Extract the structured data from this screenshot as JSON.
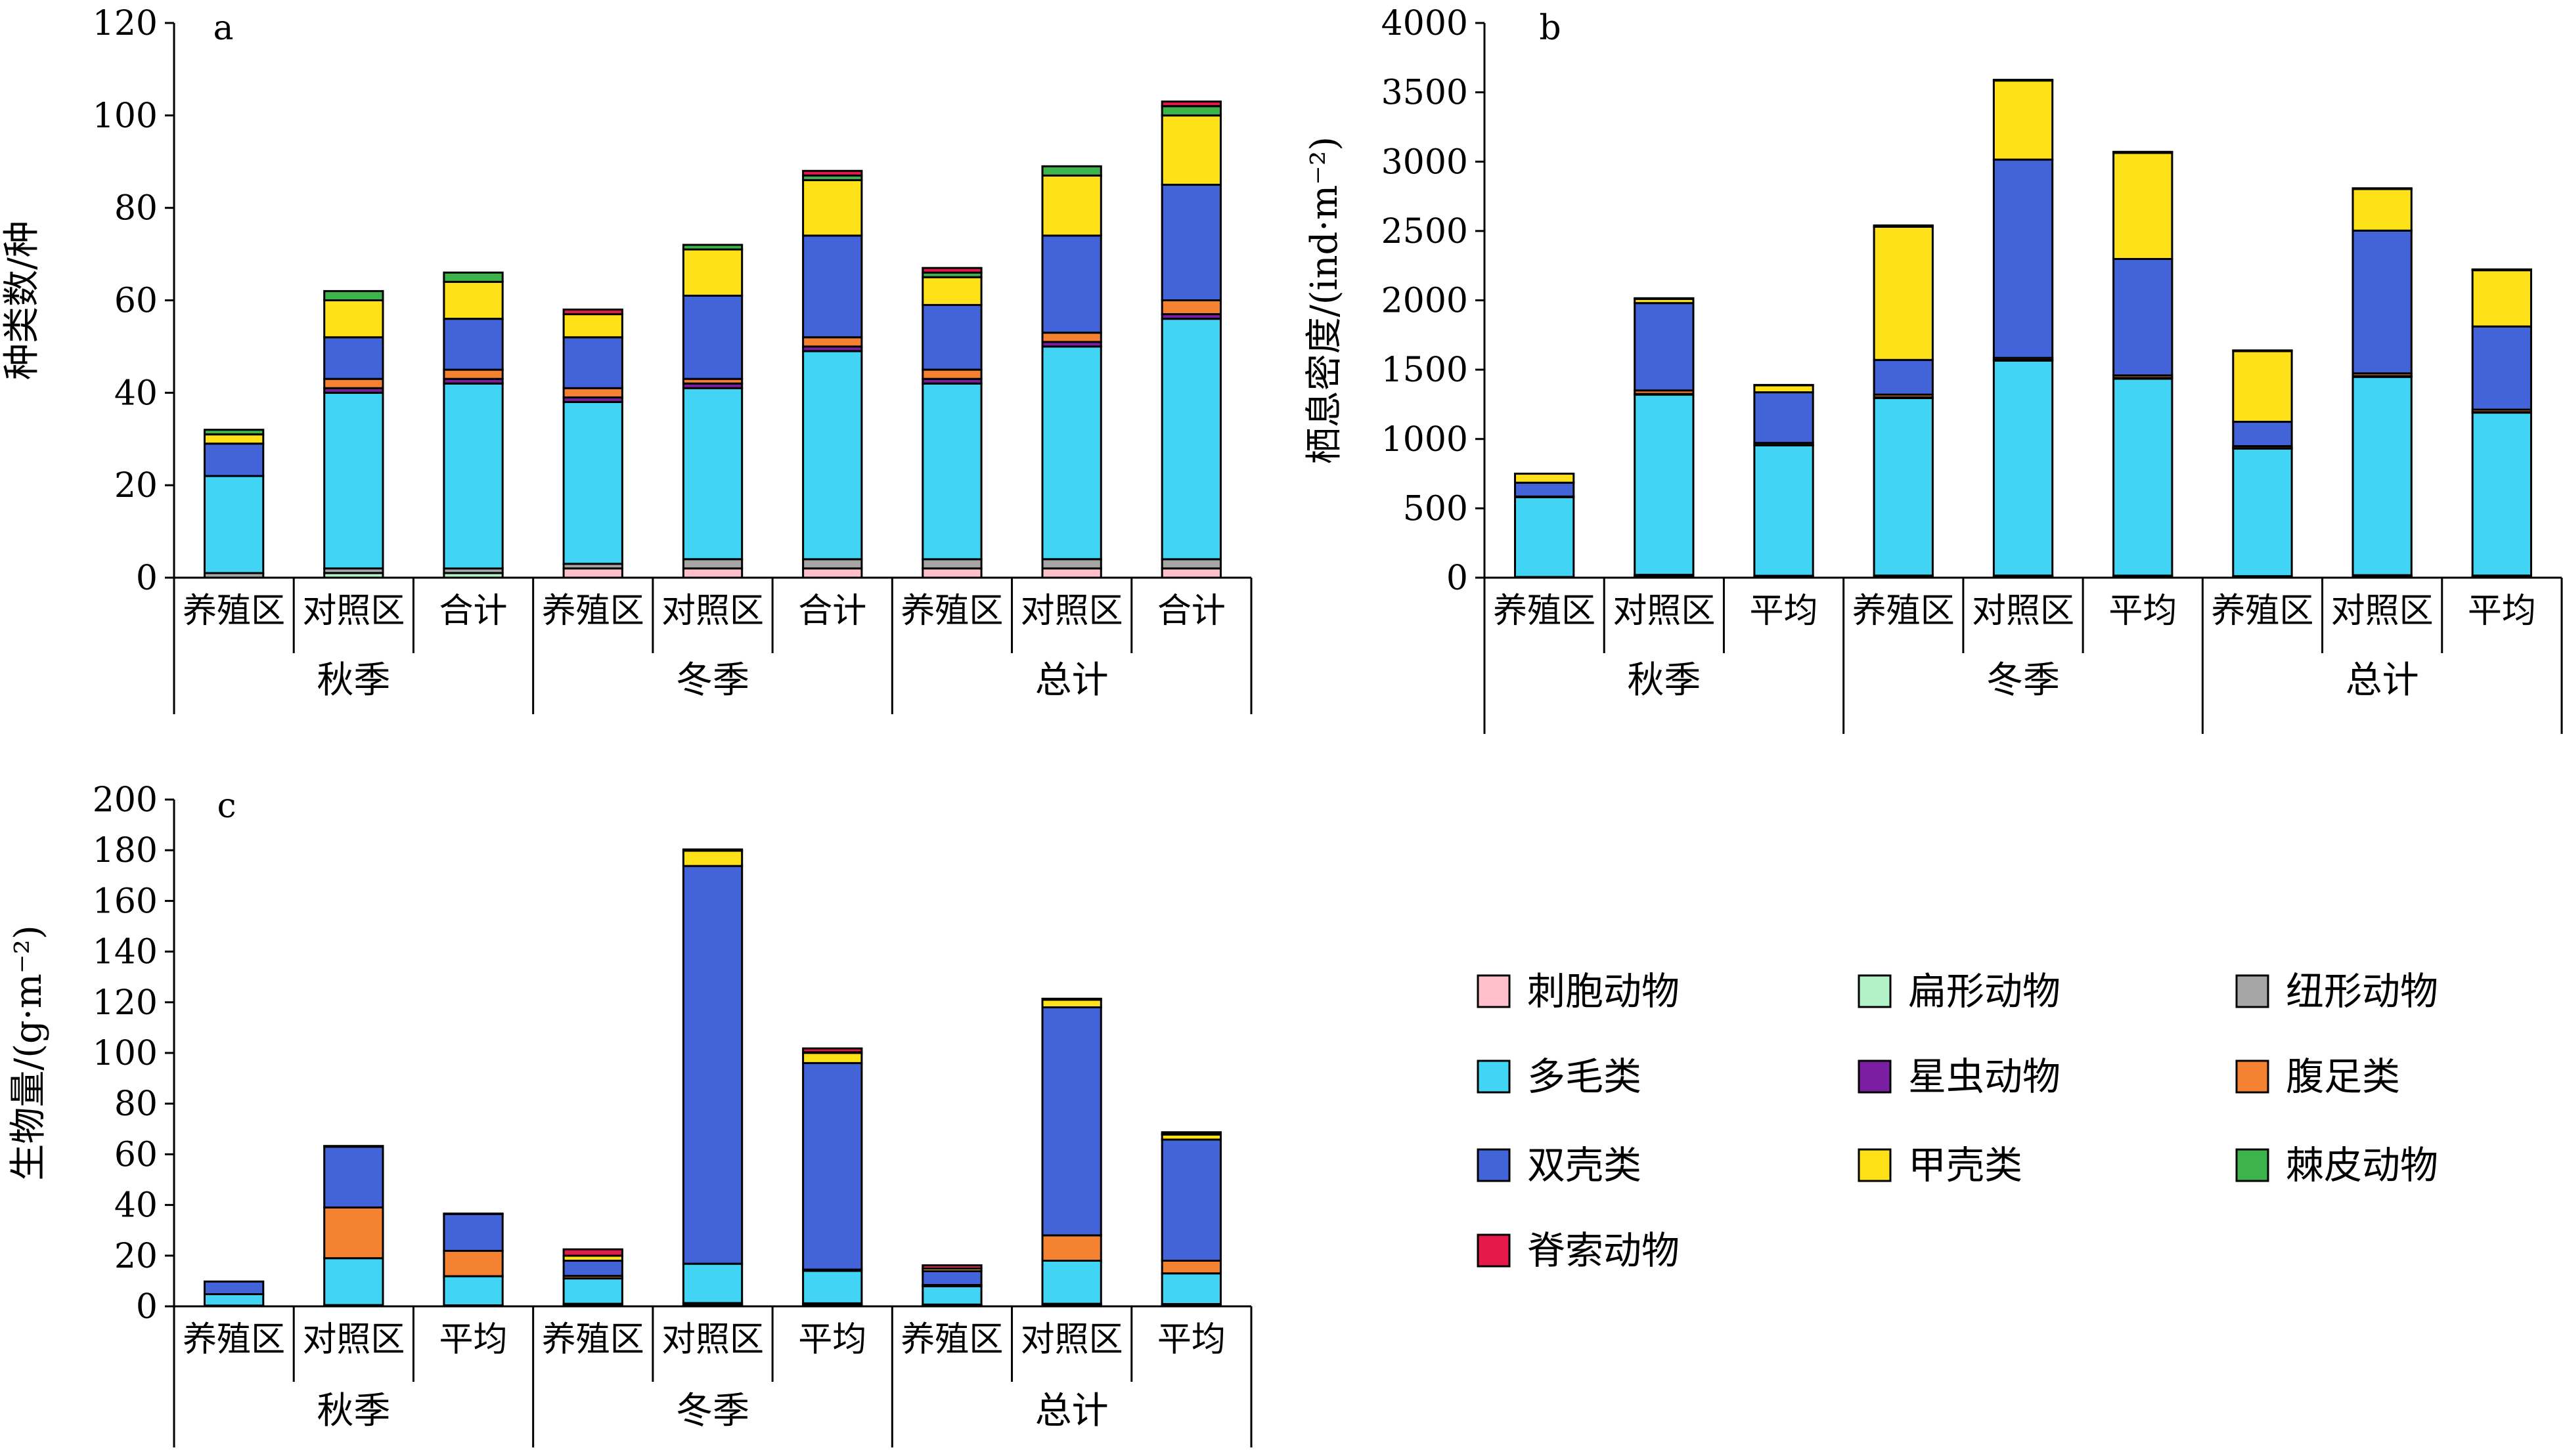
{
  "colors": {
    "刺胞动物": "#FFC0CB",
    "扁形动物": "#B3F2C6",
    "纽形动物": "#A6A6A6",
    "多毛类": "#42D4F4",
    "星虫动物": "#7B1FA2",
    "腹足类": "#F58231",
    "双壳类": "#4363D8",
    "甲壳类": "#FFE119",
    "棘皮动物": "#3CB44B",
    "脊索动物": "#E6194B"
  },
  "legend": {
    "items": [
      "刺胞动物",
      "扁形动物",
      "纽形动物",
      "多毛类",
      "星虫动物",
      "腹足类",
      "双壳类",
      "甲壳类",
      "棘皮动物",
      "脊索动物"
    ]
  },
  "chart_data": [
    {
      "id": "a",
      "type": "bar",
      "stacked": true,
      "panel_label": "a",
      "ylabel": "种类数/种",
      "ylim": [
        0,
        120
      ],
      "yticks": [
        0,
        20,
        40,
        60,
        80,
        100,
        120
      ],
      "categories": [
        "养殖区",
        "对照区",
        "合计",
        "养殖区",
        "对照区",
        "合计",
        "养殖区",
        "对照区",
        "合计"
      ],
      "groups": [
        "秋季",
        "冬季",
        "总计"
      ],
      "series": [
        {
          "name": "刺胞动物",
          "values": [
            0,
            0,
            0,
            2,
            2,
            2,
            2,
            2,
            2
          ]
        },
        {
          "name": "扁形动物",
          "values": [
            0,
            1,
            1,
            0,
            0,
            0,
            0,
            0,
            0
          ]
        },
        {
          "name": "纽形动物",
          "values": [
            1,
            1,
            1,
            1,
            2,
            2,
            2,
            2,
            2
          ]
        },
        {
          "name": "多毛类",
          "values": [
            21,
            38,
            40,
            35,
            37,
            45,
            38,
            46,
            52
          ]
        },
        {
          "name": "星虫动物",
          "values": [
            0,
            1,
            1,
            1,
            1,
            1,
            1,
            1,
            1
          ]
        },
        {
          "name": "腹足类",
          "values": [
            0,
            2,
            2,
            2,
            1,
            2,
            2,
            2,
            3
          ]
        },
        {
          "name": "双壳类",
          "values": [
            7,
            9,
            11,
            11,
            18,
            22,
            14,
            21,
            25
          ]
        },
        {
          "name": "甲壳类",
          "values": [
            2,
            8,
            8,
            5,
            10,
            12,
            6,
            13,
            15
          ]
        },
        {
          "name": "棘皮动物",
          "values": [
            1,
            2,
            2,
            0,
            1,
            1,
            1,
            2,
            2
          ]
        },
        {
          "name": "脊索动物",
          "values": [
            0,
            0,
            0,
            1,
            0,
            1,
            1,
            0,
            1
          ]
        }
      ]
    },
    {
      "id": "b",
      "type": "bar",
      "stacked": true,
      "panel_label": "b",
      "ylabel": "栖息密度/(ind·m⁻²)",
      "ylim": [
        0,
        4000
      ],
      "yticks": [
        0,
        500,
        1000,
        1500,
        2000,
        2500,
        3000,
        3500,
        4000
      ],
      "categories": [
        "养殖区",
        "对照区",
        "平均",
        "养殖区",
        "对照区",
        "平均",
        "养殖区",
        "对照区",
        "平均"
      ],
      "groups": [
        "秋季",
        "冬季",
        "总计"
      ],
      "series": [
        {
          "name": "刺胞动物",
          "values": [
            0,
            5,
            3,
            5,
            5,
            5,
            3,
            5,
            4
          ]
        },
        {
          "name": "扁形动物",
          "values": [
            0,
            5,
            3,
            0,
            0,
            0,
            0,
            3,
            2
          ]
        },
        {
          "name": "纽形动物",
          "values": [
            5,
            10,
            8,
            10,
            10,
            10,
            8,
            10,
            9
          ]
        },
        {
          "name": "多毛类",
          "values": [
            575,
            1300,
            940,
            1280,
            1550,
            1420,
            920,
            1430,
            1175
          ]
        },
        {
          "name": "星虫动物",
          "values": [
            0,
            5,
            3,
            5,
            5,
            5,
            3,
            5,
            4
          ]
        },
        {
          "name": "腹足类",
          "values": [
            5,
            25,
            15,
            20,
            15,
            18,
            15,
            20,
            18
          ]
        },
        {
          "name": "双壳类",
          "values": [
            100,
            630,
            365,
            250,
            1430,
            840,
            175,
            1030,
            600
          ]
        },
        {
          "name": "甲壳类",
          "values": [
            65,
            30,
            50,
            960,
            570,
            765,
            510,
            300,
            405
          ]
        },
        {
          "name": "棘皮动物",
          "values": [
            0,
            5,
            3,
            0,
            5,
            3,
            0,
            5,
            3
          ]
        },
        {
          "name": "脊索动物",
          "values": [
            0,
            0,
            0,
            10,
            0,
            5,
            5,
            0,
            3
          ]
        }
      ]
    },
    {
      "id": "c",
      "type": "bar",
      "stacked": true,
      "panel_label": "c",
      "ylabel": "生物量/(g·m⁻²)",
      "ylim": [
        0,
        200
      ],
      "yticks": [
        0,
        20,
        40,
        60,
        80,
        100,
        120,
        140,
        160,
        180,
        200
      ],
      "categories": [
        "养殖区",
        "对照区",
        "平均",
        "养殖区",
        "对照区",
        "平均",
        "养殖区",
        "对照区",
        "平均"
      ],
      "groups": [
        "秋季",
        "冬季",
        "总计"
      ],
      "series": [
        {
          "name": "刺胞动物",
          "values": [
            0,
            0,
            0,
            0.5,
            0.5,
            0.5,
            0.3,
            0.3,
            0.3
          ]
        },
        {
          "name": "扁形动物",
          "values": [
            0,
            0,
            0,
            0,
            0,
            0,
            0,
            0,
            0
          ]
        },
        {
          "name": "纽形动物",
          "values": [
            0.3,
            0.5,
            0.4,
            0.5,
            0.8,
            0.7,
            0.4,
            0.7,
            0.6
          ]
        },
        {
          "name": "多毛类",
          "values": [
            4.5,
            18.5,
            11.5,
            10,
            15.5,
            12.8,
            7.2,
            17,
            12.1
          ]
        },
        {
          "name": "星虫动物",
          "values": [
            0,
            0,
            0,
            0,
            0,
            0,
            0,
            0,
            0
          ]
        },
        {
          "name": "腹足类",
          "values": [
            0,
            20,
            10,
            1,
            0,
            0.5,
            0.5,
            10,
            5
          ]
        },
        {
          "name": "双壳类",
          "values": [
            5,
            24,
            14.5,
            6,
            157,
            81.5,
            5.5,
            90,
            47.8
          ]
        },
        {
          "name": "甲壳类",
          "values": [
            0,
            0,
            0,
            2,
            6,
            4,
            1,
            3,
            2
          ]
        },
        {
          "name": "棘皮动物",
          "values": [
            0,
            0.3,
            0.2,
            0,
            0.5,
            0.3,
            0,
            0.4,
            0.2
          ]
        },
        {
          "name": "脊索动物",
          "values": [
            0,
            0,
            0,
            2.5,
            0,
            1.5,
            1.3,
            0,
            0.7
          ]
        }
      ]
    }
  ]
}
